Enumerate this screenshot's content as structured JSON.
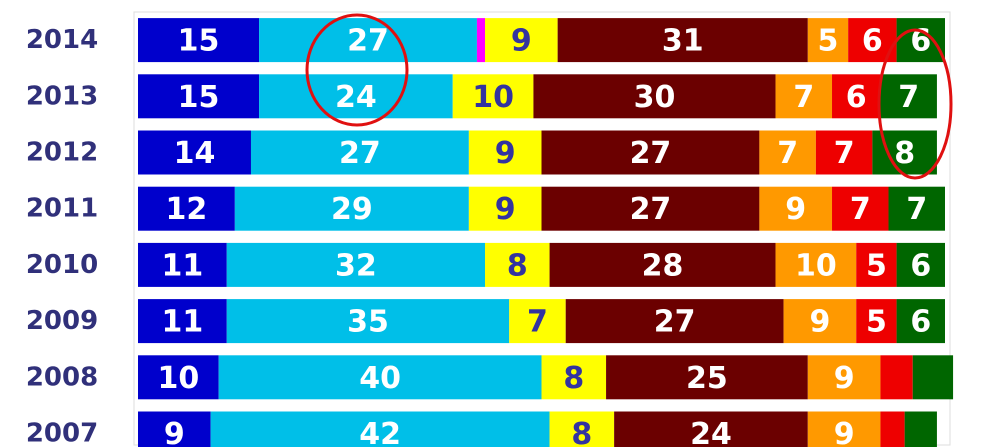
{
  "chart_data": {
    "type": "bar",
    "orientation": "horizontal",
    "stacked": true,
    "categories": [
      "2014",
      "2013",
      "2012",
      "2011",
      "2010",
      "2009",
      "2008",
      "2007"
    ],
    "xlim": [
      0,
      100
    ],
    "series": [
      {
        "color": "#0000cc",
        "label_color": "#ffffff",
        "values": [
          15,
          15,
          14,
          12,
          11,
          11,
          10,
          9
        ],
        "value_labels": [
          "15",
          "15",
          "14",
          "12",
          "11",
          "11",
          "10",
          "9"
        ]
      },
      {
        "color": "#00bfe8",
        "label_color": "#ffffff",
        "values": [
          27,
          24,
          27,
          29,
          32,
          35,
          40,
          42
        ],
        "value_labels": [
          "27",
          "24",
          "27",
          "29",
          "32",
          "35",
          "40",
          "42"
        ]
      },
      {
        "color": "#ff00ff",
        "label_color": "#ffffff",
        "values": [
          1,
          0,
          0,
          0,
          0,
          0,
          0,
          0
        ],
        "value_labels": [
          null,
          null,
          null,
          null,
          null,
          null,
          null,
          null
        ]
      },
      {
        "color": "#ffff00",
        "label_color": "#3333a0",
        "values": [
          9,
          10,
          9,
          9,
          8,
          7,
          8,
          8
        ],
        "value_labels": [
          "9",
          "10",
          "9",
          "9",
          "8",
          "7",
          "8",
          "8"
        ]
      },
      {
        "color": "#6b0000",
        "label_color": "#ffffff",
        "values": [
          31,
          30,
          27,
          27,
          28,
          27,
          25,
          24
        ],
        "value_labels": [
          "31",
          "30",
          "27",
          "27",
          "28",
          "27",
          "25",
          "24"
        ]
      },
      {
        "color": "#ff9900",
        "label_color": "#ffffff",
        "values": [
          5,
          7,
          7,
          9,
          10,
          9,
          9,
          9
        ],
        "value_labels": [
          "5",
          "7",
          "7",
          "9",
          "10",
          "9",
          "9",
          "9"
        ]
      },
      {
        "color": "#ee0000",
        "label_color": "#ffffff",
        "values": [
          6,
          6,
          7,
          7,
          5,
          5,
          4,
          3
        ],
        "value_labels": [
          "6",
          "6",
          "7",
          "7",
          "5",
          "5",
          null,
          null
        ]
      },
      {
        "color": "#006600",
        "label_color": "#ffffff",
        "values": [
          6,
          7,
          8,
          7,
          6,
          6,
          5,
          4
        ],
        "value_labels": [
          "6",
          "7",
          "8",
          "7",
          "6",
          "6",
          null,
          null
        ]
      }
    ]
  }
}
